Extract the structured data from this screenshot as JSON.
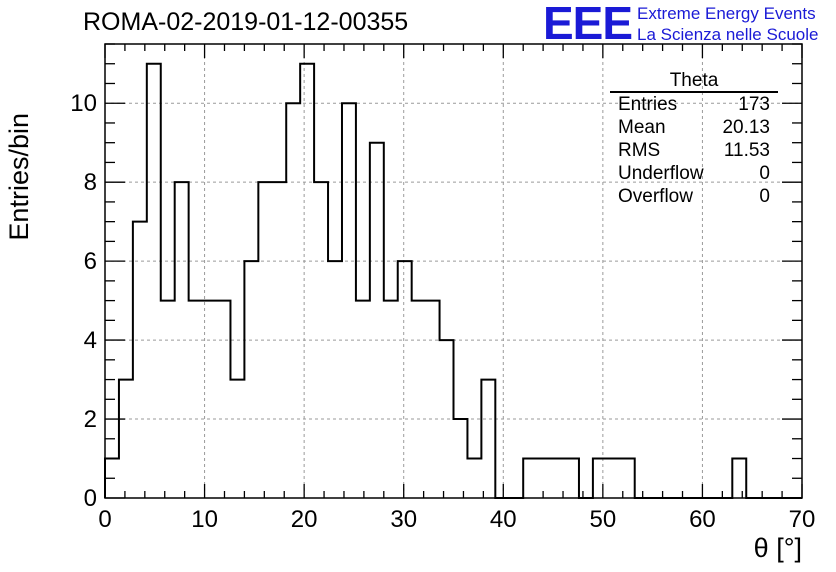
{
  "title": "ROMA-02-2019-01-12-00355",
  "logo": {
    "mark": "EEE",
    "line1": "Extreme Energy Events",
    "line2": "La Scienza nelle Scuole",
    "color": "#1a1ad6"
  },
  "stats": {
    "name": "Theta",
    "rows": [
      {
        "label": "Entries",
        "value": "173"
      },
      {
        "label": "Mean",
        "value": "20.13"
      },
      {
        "label": "RMS",
        "value": "11.53"
      },
      {
        "label": "Underflow",
        "value": "0"
      },
      {
        "label": "Overflow",
        "value": "0"
      }
    ]
  },
  "chart_data": {
    "type": "histogram",
    "title": "ROMA-02-2019-01-12-00355",
    "xlabel": "θ [°]",
    "ylabel": "Entries/bin",
    "xlim": [
      0,
      70
    ],
    "ylim": [
      0,
      11.5
    ],
    "grid": true,
    "bin_width": 1.4,
    "x_ticks": [
      0,
      10,
      20,
      30,
      40,
      50,
      60,
      70
    ],
    "y_ticks": [
      0,
      2,
      4,
      6,
      8,
      10
    ],
    "values": [
      1,
      3,
      7,
      11,
      5,
      8,
      5,
      5,
      5,
      3,
      6,
      8,
      8,
      10,
      11,
      8,
      6,
      10,
      5,
      9,
      5,
      6,
      5,
      5,
      4,
      2,
      1,
      3,
      0,
      0,
      1,
      1,
      1,
      1,
      0,
      1,
      1,
      1,
      0,
      0,
      0,
      0,
      0,
      0,
      0,
      1,
      0,
      0,
      0,
      0
    ]
  }
}
